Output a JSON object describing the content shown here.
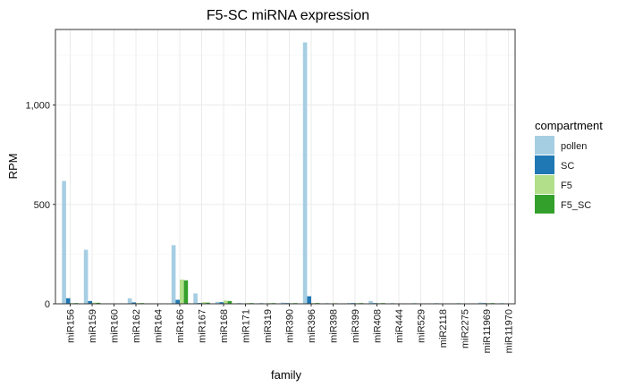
{
  "chart_data": {
    "type": "bar",
    "title": "F5-SC miRNA expression",
    "xlabel": "family",
    "ylabel": "RPM",
    "ylim": [
      0,
      1380
    ],
    "yticks": [
      0,
      500,
      1000
    ],
    "ytick_labels": [
      "0",
      "500",
      "1,000"
    ],
    "grid": true,
    "legend_position": "right",
    "legend_title": "compartment",
    "categories": [
      "miR156",
      "miR159",
      "miR160",
      "miR162",
      "miR164",
      "miR166",
      "miR167",
      "miR168",
      "miR171",
      "miR319",
      "miR390",
      "miR396",
      "miR398",
      "miR399",
      "miR408",
      "miR444",
      "miR529",
      "miR2118",
      "miR2275",
      "miR11969",
      "miR11970"
    ],
    "series": [
      {
        "name": "pollen",
        "color": "#A6CEE3",
        "values": [
          618,
          272,
          0,
          28,
          0,
          295,
          52,
          10,
          4,
          4,
          6,
          1315,
          2,
          4,
          14,
          1,
          1,
          1,
          1,
          6,
          1
        ]
      },
      {
        "name": "SC",
        "color": "#1F78B4",
        "values": [
          28,
          14,
          0,
          7,
          0,
          20,
          4,
          8,
          0,
          0,
          2,
          38,
          0,
          1,
          3,
          0,
          0,
          0,
          0,
          2,
          0
        ]
      },
      {
        "name": "F5",
        "color": "#B2DF8A",
        "values": [
          3,
          6,
          0,
          3,
          0,
          122,
          8,
          16,
          2,
          1,
          3,
          3,
          1,
          1,
          1,
          0,
          0,
          0,
          0,
          1,
          0
        ]
      },
      {
        "name": "F5_SC",
        "color": "#33A02C",
        "values": [
          2,
          5,
          0,
          2,
          0,
          118,
          6,
          14,
          1,
          1,
          2,
          4,
          0,
          1,
          1,
          0,
          0,
          0,
          0,
          1,
          0
        ]
      }
    ]
  }
}
